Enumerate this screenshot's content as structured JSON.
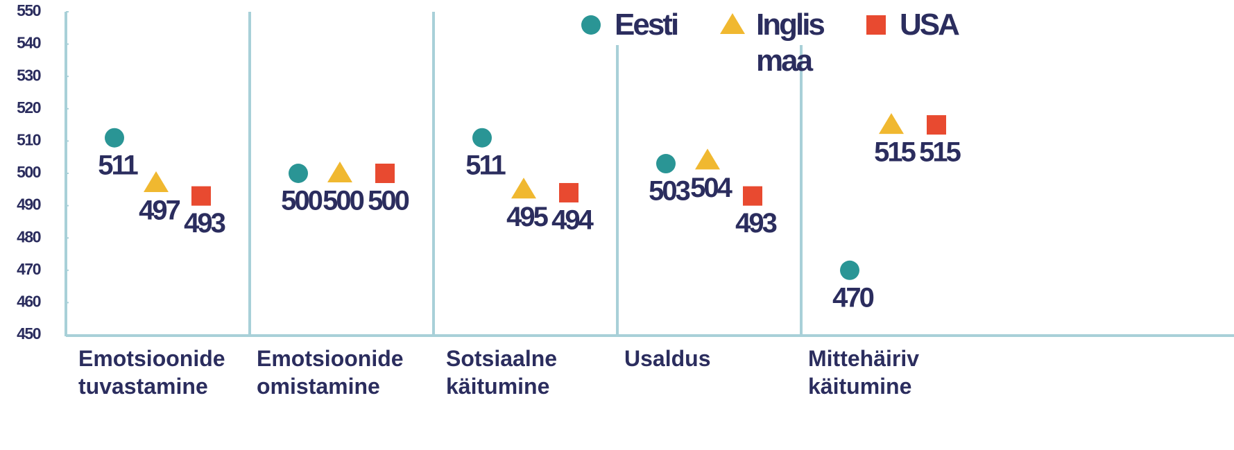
{
  "chart_data": {
    "type": "scatter",
    "categories": [
      "Emotsioonide tuvastamine",
      "Emotsioonide omistamine",
      "Sotsiaalne käitumine",
      "Usaldus",
      "Mittehäiriv käitumine"
    ],
    "series": [
      {
        "name": "Eesti",
        "color": "#2a9595",
        "marker": "circle",
        "values": [
          511,
          500,
          511,
          503,
          470
        ]
      },
      {
        "name": "Inglis maa",
        "color": "#f0b830",
        "marker": "triangle",
        "values": [
          497,
          500,
          495,
          504,
          515
        ]
      },
      {
        "name": "USA",
        "color": "#e84a30",
        "marker": "square",
        "values": [
          493,
          500,
          494,
          493,
          515
        ]
      }
    ],
    "ylim": [
      450,
      550
    ],
    "yticks": [
      450,
      460,
      470,
      480,
      490,
      500,
      510,
      520,
      530,
      540,
      550
    ]
  }
}
